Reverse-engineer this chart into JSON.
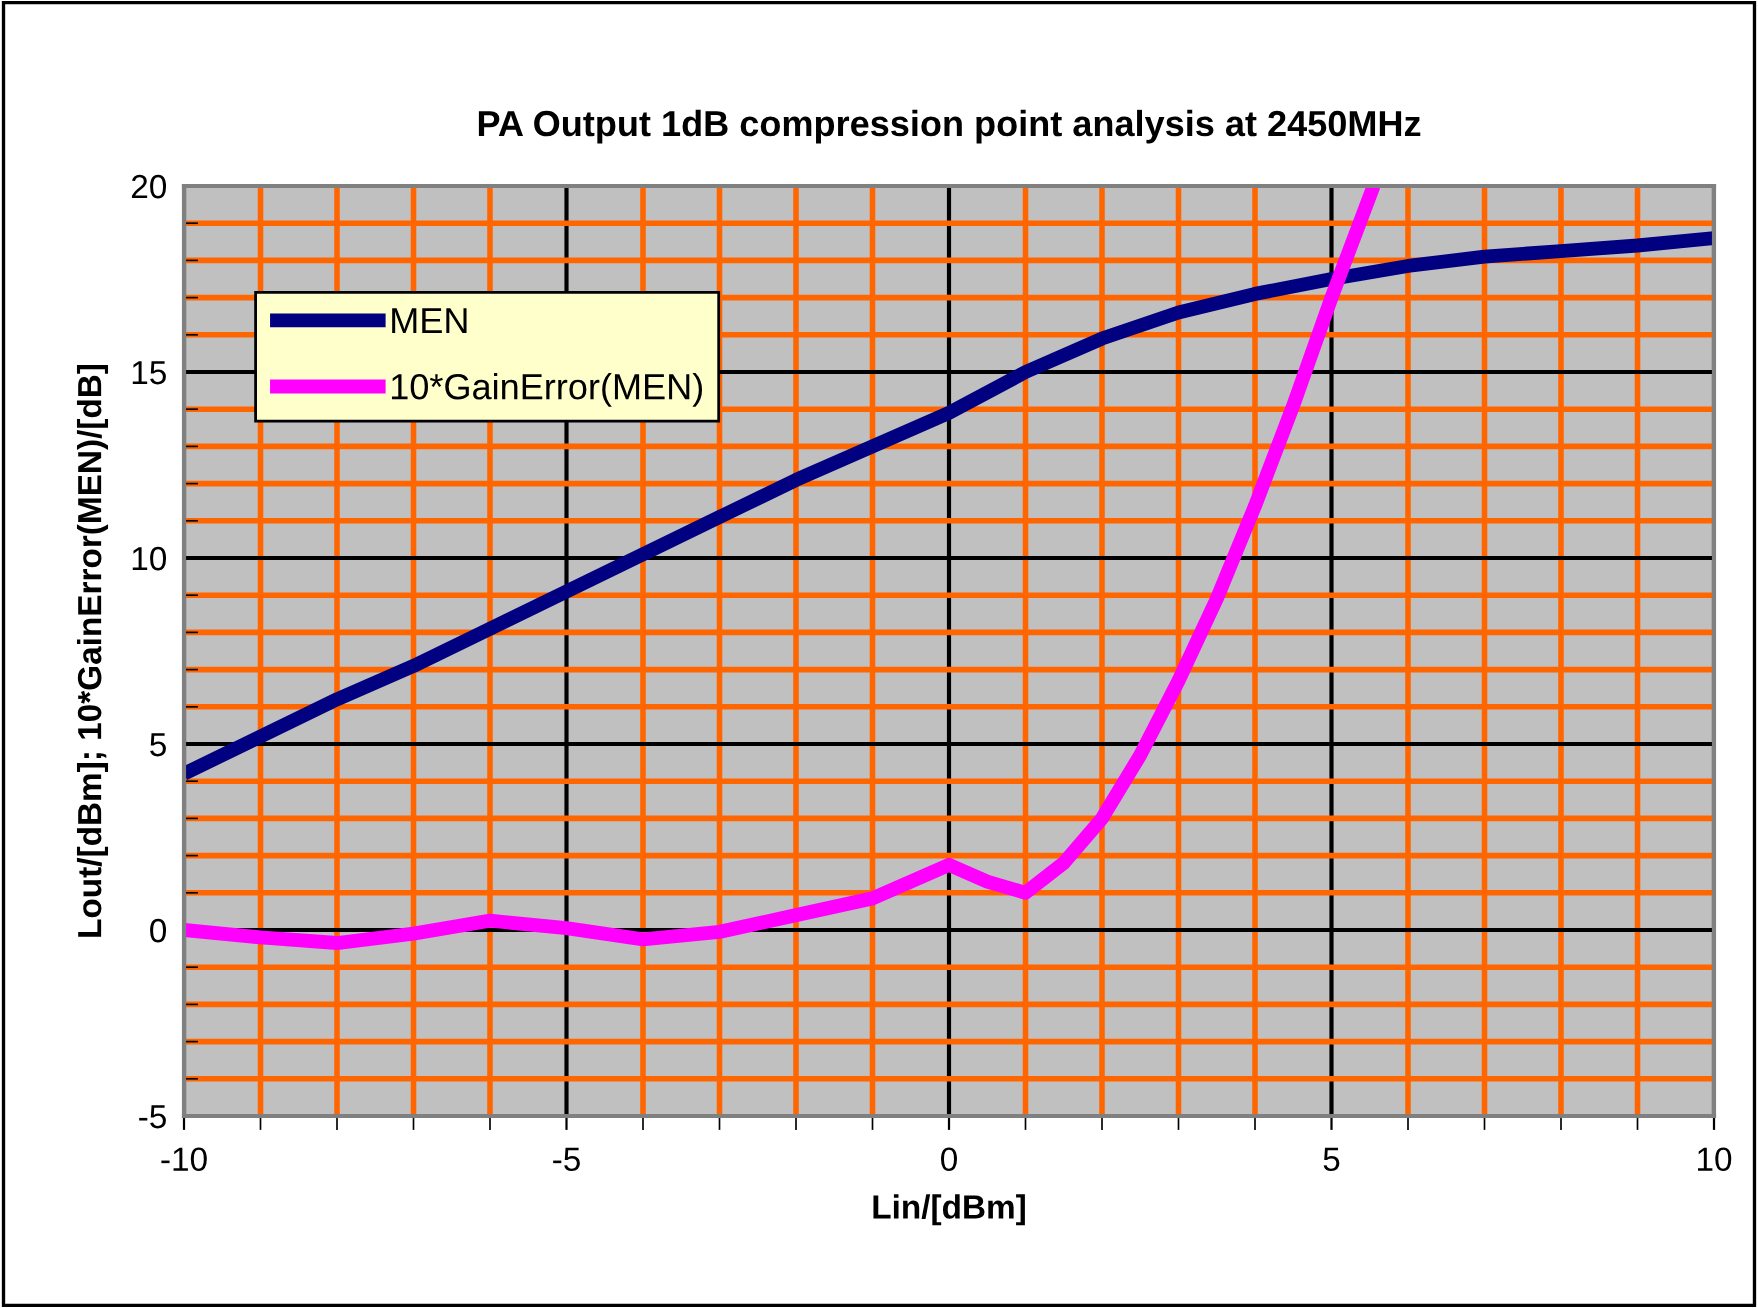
{
  "chart_data": {
    "type": "line",
    "title": "PA Output 1dB compression point analysis at 2450MHz",
    "xlabel": "Lin/[dBm]",
    "ylabel": "Lout/[dBm]; 10*GainError(MEN)/[dB]",
    "xlim": [
      -10,
      10
    ],
    "xticks": [
      -10,
      {
        "value": -9,
        "label": null
      },
      {
        "value": -8,
        "label": null
      },
      {
        "value": -7,
        "label": null
      },
      {
        "value": -6,
        "label": null
      },
      -5,
      {
        "value": -4,
        "label": null
      },
      {
        "value": -3,
        "label": null
      },
      {
        "value": -2,
        "label": null
      },
      {
        "value": -1,
        "label": null
      },
      0,
      {
        "value": 1,
        "label": null
      },
      {
        "value": 2,
        "label": null
      },
      {
        "value": 3,
        "label": null
      },
      {
        "value": 4,
        "label": null
      },
      5,
      {
        "value": 6,
        "label": null
      },
      {
        "value": 7,
        "label": null
      },
      {
        "value": 8,
        "label": null
      },
      {
        "value": 9,
        "label": null
      },
      10
    ],
    "ylim": [
      -5,
      20
    ],
    "yticks": [
      -5,
      {
        "value": -4,
        "label": null
      },
      {
        "value": -3,
        "label": null
      },
      {
        "value": -2,
        "label": null
      },
      {
        "value": -1,
        "label": null
      },
      0,
      {
        "value": 1,
        "label": null
      },
      {
        "value": 2,
        "label": null
      },
      {
        "value": 3,
        "label": null
      },
      {
        "value": 4,
        "label": null
      },
      5,
      {
        "value": 6,
        "label": null
      },
      {
        "value": 7,
        "label": null
      },
      {
        "value": 8,
        "label": null
      },
      {
        "value": 9,
        "label": null
      },
      10,
      {
        "value": 11,
        "label": null
      },
      {
        "value": 12,
        "label": null
      },
      {
        "value": 13,
        "label": null
      },
      {
        "value": 14,
        "label": null
      },
      15,
      {
        "value": 16,
        "label": null
      },
      {
        "value": 17,
        "label": null
      },
      {
        "value": 18,
        "label": null
      },
      {
        "value": 19,
        "label": null
      },
      20
    ],
    "grid": true,
    "legend": "top left",
    "line_style": "solid",
    "marker": "none",
    "series": [
      {
        "name": "MEN",
        "color": "#000080",
        "x": [
          -10,
          -9,
          -8,
          -7,
          -6,
          -5,
          -4,
          -3,
          -2,
          -1,
          0,
          1,
          2,
          3,
          4,
          5,
          6,
          7,
          8,
          9,
          10
        ],
        "values": [
          4.2,
          5.2,
          6.2,
          7.1,
          8.1,
          9.1,
          10.1,
          11.1,
          12.1,
          13.0,
          13.9,
          15.0,
          15.9,
          16.6,
          17.1,
          17.5,
          17.85,
          18.1,
          18.25,
          18.4,
          18.6
        ]
      },
      {
        "name": "10*GainError(MEN)",
        "color": "#ff00ff",
        "x": [
          -10,
          -9,
          -8,
          -7,
          -6,
          -5,
          -4,
          -3,
          -2,
          -1,
          0,
          0.5,
          1,
          1.5,
          2,
          2.5,
          3,
          3.5,
          4,
          4.5,
          5,
          5.55
        ],
        "values": [
          0,
          -0.2,
          -0.35,
          -0.1,
          0.25,
          0.05,
          -0.25,
          -0.05,
          0.4,
          0.85,
          1.75,
          1.3,
          1.0,
          1.8,
          3.0,
          4.7,
          6.7,
          8.9,
          11.4,
          14.1,
          17.0,
          20
        ]
      }
    ]
  }
}
